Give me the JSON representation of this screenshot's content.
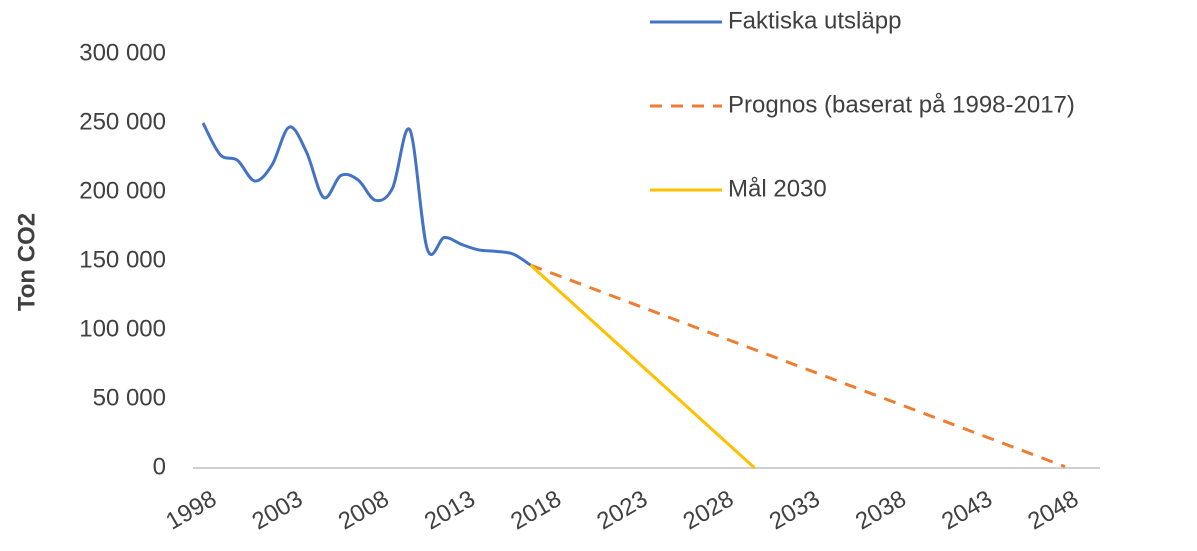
{
  "chart_data": {
    "type": "line",
    "y_label": "Ton CO2",
    "series": [
      {
        "name": "Faktiska utsläpp",
        "color": "#4472c4",
        "dash": false,
        "smooth": true,
        "x": [
          1998,
          1999,
          2000,
          2001,
          2002,
          2003,
          2004,
          2005,
          2006,
          2007,
          2008,
          2009,
          2010,
          2011,
          2012,
          2013,
          2014,
          2015,
          2016,
          2017
        ],
        "values": [
          250000,
          227000,
          223000,
          208000,
          219500,
          247000,
          229000,
          196000,
          212000,
          208700,
          194000,
          203000,
          245000,
          159000,
          167000,
          162000,
          158000,
          157000,
          155000,
          147000
        ]
      },
      {
        "name": "Prognos (baserat på 1998-2017)",
        "color": "#ed7d31",
        "dash": true,
        "smooth": false,
        "x": [
          2017,
          2048
        ],
        "values": [
          147000,
          1000
        ]
      },
      {
        "name": "Mål 2030",
        "color": "#ffc000",
        "dash": false,
        "smooth": false,
        "x": [
          2017,
          2030
        ],
        "values": [
          147000,
          0
        ]
      }
    ],
    "xlim": [
      1998,
      2048
    ],
    "xticks": [
      1998,
      2003,
      2008,
      2013,
      2018,
      2023,
      2028,
      2033,
      2038,
      2043,
      2048
    ],
    "ylim": [
      0,
      300000
    ],
    "yticks": [
      {
        "value": 0,
        "label": "0"
      },
      {
        "value": 50000,
        "label": "50 000"
      },
      {
        "value": 100000,
        "label": "100 000"
      },
      {
        "value": 150000,
        "label": "150 000"
      },
      {
        "value": 200000,
        "label": "200 000"
      },
      {
        "value": 250000,
        "label": "250 000"
      },
      {
        "value": 300000,
        "label": "300 000"
      }
    ],
    "grid": false,
    "legend": "upper right"
  }
}
